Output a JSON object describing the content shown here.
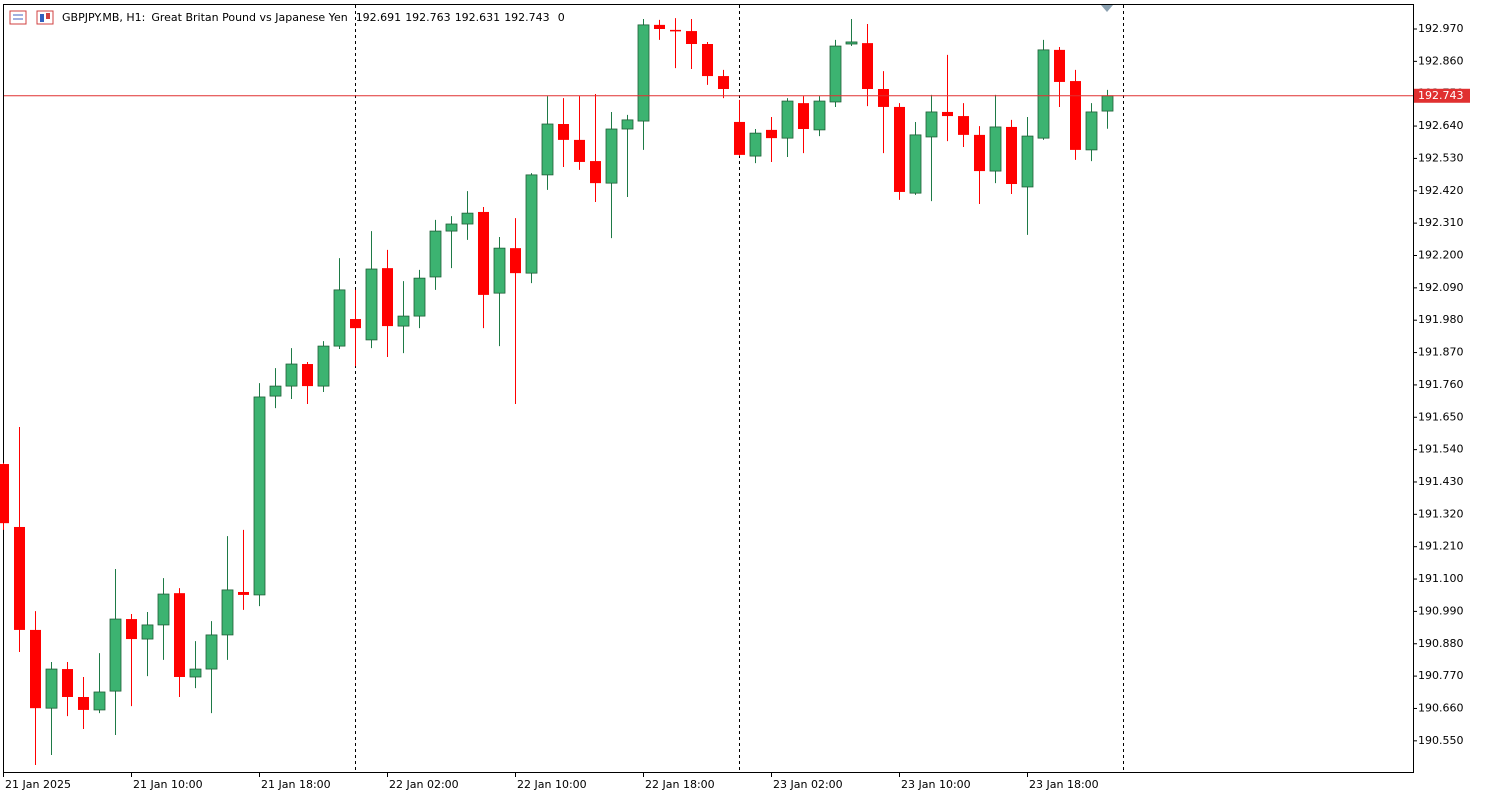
{
  "chart_data": {
    "type": "candlestick",
    "symbol": "GBPJPY.MB, H1:",
    "description": "Great Britan Pound vs Japanese Yen",
    "spread": 0,
    "up_color": "#3cb371",
    "down_color": "#ff0000",
    "price_line_color": "#e03030",
    "open": [
      191.491,
      191.277,
      190.927,
      190.661,
      190.794,
      190.699,
      190.655,
      190.719,
      190.964,
      190.896,
      190.944,
      191.052,
      190.767,
      190.794,
      190.91,
      191.056,
      191.046,
      191.722,
      191.756,
      191.831,
      191.756,
      191.892,
      191.984,
      191.913,
      192.157,
      191.96,
      191.994,
      192.127,
      192.283,
      192.307,
      192.348,
      192.072,
      192.225,
      192.14,
      192.474,
      192.647,
      192.593,
      192.521,
      192.446,
      192.63,
      192.657,
      192.984,
      192.967,
      192.963,
      192.919,
      192.81,
      192.654,
      192.538,
      192.627,
      192.599,
      192.718,
      192.627,
      192.722,
      192.919,
      192.922,
      192.766,
      192.705,
      192.412,
      192.603,
      192.688,
      192.674,
      192.61,
      192.487,
      192.637,
      192.433,
      192.599,
      192.899,
      192.793,
      192.559,
      192.691
    ],
    "high": [
      191.495,
      191.617,
      190.991,
      190.818,
      190.818,
      190.767,
      190.848,
      191.134,
      190.981,
      190.988,
      191.103,
      191.069,
      190.889,
      190.957,
      191.246,
      191.267,
      191.766,
      191.817,
      191.885,
      191.838,
      191.909,
      192.191,
      192.083,
      192.283,
      192.219,
      192.113,
      192.151,
      192.321,
      192.334,
      192.419,
      192.365,
      192.263,
      192.327,
      192.48,
      192.742,
      192.735,
      192.742,
      192.749,
      192.688,
      192.678,
      193.004,
      193.001,
      193.007,
      193.004,
      192.926,
      192.831,
      192.729,
      192.63,
      192.671,
      192.735,
      192.742,
      192.742,
      192.933,
      193.004,
      192.987,
      192.827,
      192.718,
      192.654,
      192.746,
      192.882,
      192.718,
      192.64,
      192.746,
      192.661,
      192.671,
      192.933,
      192.909,
      192.831,
      192.718,
      192.763
    ],
    "low": [
      191.267,
      190.852,
      190.468,
      190.502,
      190.634,
      190.59,
      190.644,
      190.57,
      190.668,
      190.77,
      190.825,
      190.699,
      190.729,
      190.644,
      190.825,
      190.995,
      191.008,
      191.681,
      191.712,
      191.695,
      191.736,
      191.882,
      191.824,
      191.885,
      191.855,
      191.868,
      191.953,
      192.083,
      192.157,
      192.253,
      191.953,
      191.892,
      191.695,
      192.106,
      192.423,
      192.501,
      192.491,
      192.382,
      192.259,
      192.399,
      192.559,
      192.933,
      192.837,
      192.834,
      192.78,
      192.735,
      192.538,
      192.514,
      192.518,
      192.535,
      192.548,
      192.606,
      192.705,
      192.912,
      192.708,
      192.548,
      192.389,
      192.406,
      192.385,
      192.589,
      192.569,
      192.375,
      192.446,
      192.409,
      192.27,
      192.593,
      192.705,
      192.525,
      192.521,
      192.631
    ],
    "close": [
      191.29,
      190.927,
      190.661,
      190.794,
      190.699,
      190.655,
      190.716,
      190.964,
      190.896,
      190.944,
      191.049,
      190.767,
      190.794,
      190.91,
      191.063,
      191.046,
      191.719,
      191.756,
      191.831,
      191.756,
      191.892,
      192.083,
      191.953,
      192.154,
      191.96,
      191.994,
      192.123,
      192.283,
      192.307,
      192.344,
      192.066,
      192.225,
      192.14,
      192.474,
      192.647,
      192.593,
      192.518,
      192.446,
      192.63,
      192.661,
      192.984,
      192.97,
      192.963,
      192.919,
      192.81,
      192.766,
      192.542,
      192.616,
      192.599,
      192.725,
      192.63,
      192.725,
      192.912,
      192.926,
      192.766,
      192.705,
      192.416,
      192.61,
      192.688,
      192.674,
      192.61,
      192.487,
      192.637,
      192.443,
      192.606,
      192.899,
      192.79,
      192.559,
      192.688,
      192.743
    ],
    "ylim": [
      190.444,
      193.055
    ],
    "yticks": [
      {
        "value": 192.97,
        "label": "192.970"
      },
      {
        "value": 192.86,
        "label": "192.860"
      },
      {
        "value": 192.75,
        "label": "192.750"
      },
      {
        "value": 192.64,
        "label": "192.640"
      },
      {
        "value": 192.53,
        "label": "192.530"
      },
      {
        "value": 192.42,
        "label": "192.420"
      },
      {
        "value": 192.31,
        "label": "192.310"
      },
      {
        "value": 192.2,
        "label": "192.200"
      },
      {
        "value": 192.09,
        "label": "192.090"
      },
      {
        "value": 191.98,
        "label": "191.980"
      },
      {
        "value": 191.87,
        "label": "191.870"
      },
      {
        "value": 191.76,
        "label": "191.760"
      },
      {
        "value": 191.65,
        "label": "191.650"
      },
      {
        "value": 191.54,
        "label": "191.540"
      },
      {
        "value": 191.43,
        "label": "191.430"
      },
      {
        "value": 191.32,
        "label": "191.320"
      },
      {
        "value": 191.21,
        "label": "191.210"
      },
      {
        "value": 191.1,
        "label": "191.100"
      },
      {
        "value": 190.99,
        "label": "190.990"
      },
      {
        "value": 190.88,
        "label": "190.880"
      },
      {
        "value": 190.77,
        "label": "190.770"
      },
      {
        "value": 190.66,
        "label": "190.660"
      },
      {
        "value": 190.55,
        "label": "190.550"
      }
    ],
    "xticks": [
      {
        "value": 0,
        "label": "21 Jan 2025"
      },
      {
        "value": 8,
        "label": "21 Jan 10:00"
      },
      {
        "value": 16,
        "label": "21 Jan 18:00"
      },
      {
        "value": 24,
        "label": "22 Jan 02:00"
      },
      {
        "value": 32,
        "label": "22 Jan 10:00"
      },
      {
        "value": 40,
        "label": "22 Jan 18:00"
      },
      {
        "value": 48,
        "label": "23 Jan 02:00"
      },
      {
        "value": 56,
        "label": "23 Jan 10:00"
      },
      {
        "value": 64,
        "label": "23 Jan 18:00"
      }
    ]
  }
}
